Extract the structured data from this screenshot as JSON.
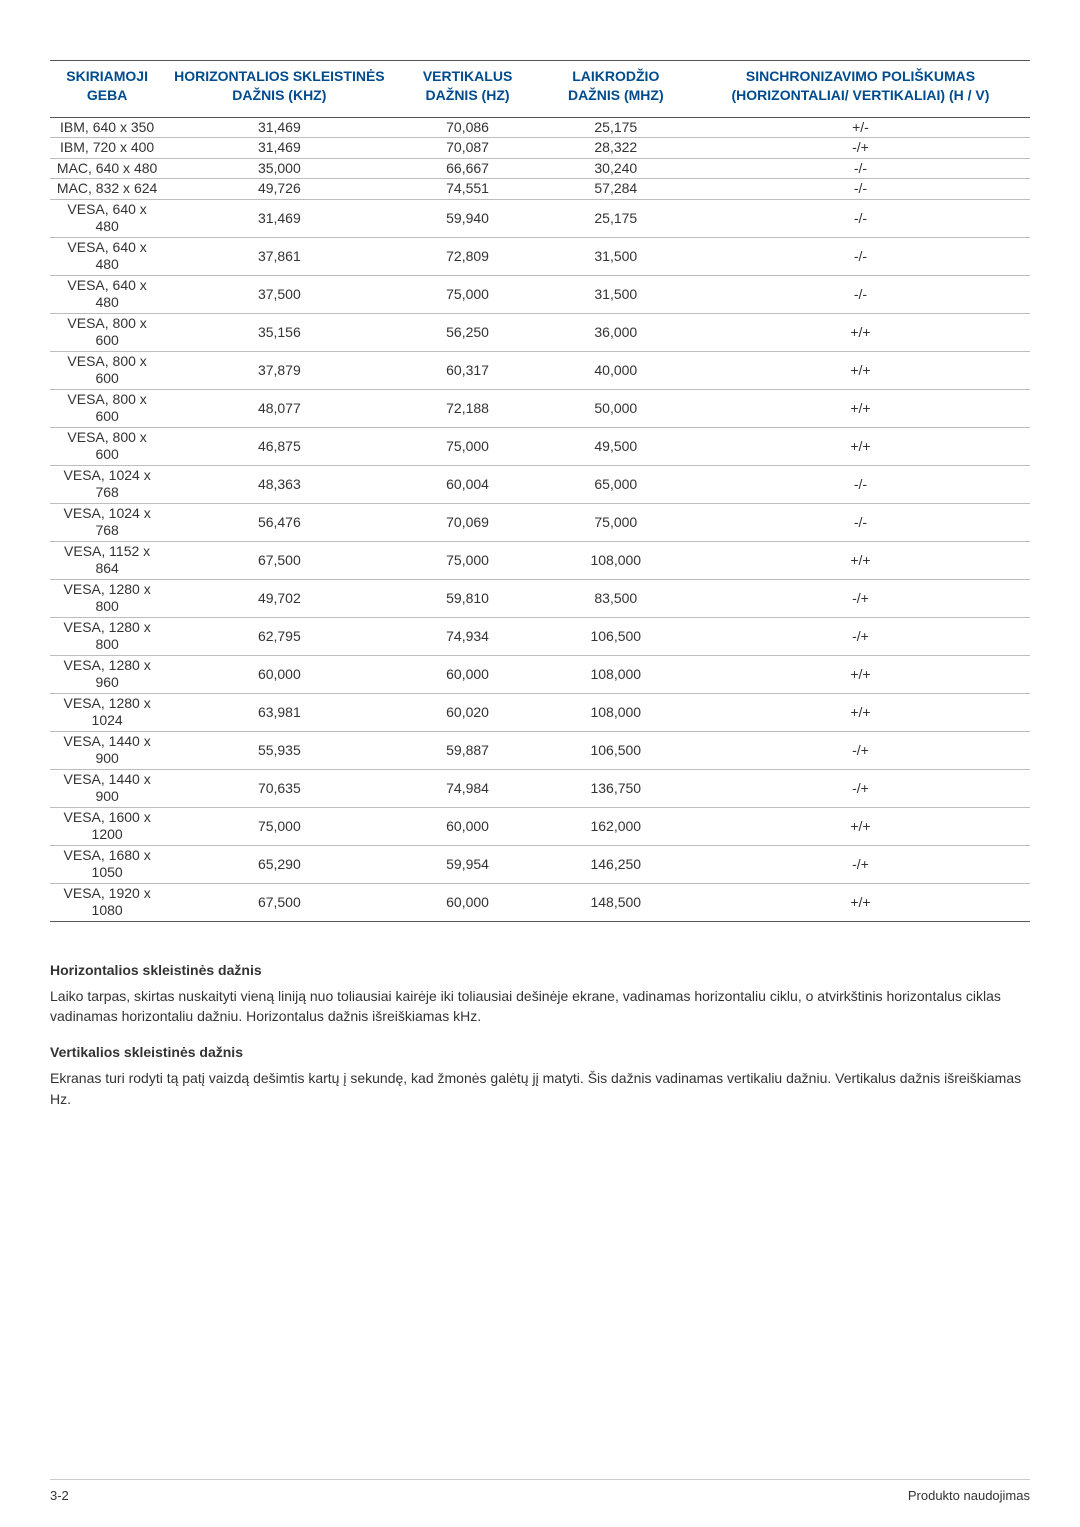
{
  "table": {
    "columns": [
      "SKIRIAMOJI GEBA",
      "HORIZONTALIOS SKLEISTINĖS DAŽNIS (KHZ)",
      "VERTIKALUS DAŽNIS (HZ)",
      "LAIKRODŽIO DAŽNIS (MHZ)",
      "SINCHRONIZAVIMO POLIŠKUMAS (HORIZONTALIAI/ VERTIKALIAI) (H / V)"
    ],
    "header_color": "#004b8d",
    "row_border_color": "#bdbdbd",
    "outer_border_color": "#555555",
    "font_size": 14,
    "col_align": [
      "center",
      "center",
      "center",
      "center",
      "center"
    ],
    "rows": [
      [
        "IBM, 640 x 350",
        "31,469",
        "70,086",
        "25,175",
        "+/-"
      ],
      [
        "IBM, 720 x 400",
        "31,469",
        "70,087",
        "28,322",
        "-/+"
      ],
      [
        "MAC, 640 x 480",
        "35,000",
        "66,667",
        "30,240",
        "-/-"
      ],
      [
        "MAC, 832 x 624",
        "49,726",
        "74,551",
        "57,284",
        "-/-"
      ],
      [
        "VESA, 640 x 480",
        "31,469",
        "59,940",
        "25,175",
        "-/-"
      ],
      [
        "VESA, 640 x 480",
        "37,861",
        "72,809",
        "31,500",
        "-/-"
      ],
      [
        "VESA, 640 x 480",
        "37,500",
        "75,000",
        "31,500",
        "-/-"
      ],
      [
        "VESA, 800 x 600",
        "35,156",
        "56,250",
        "36,000",
        "+/+"
      ],
      [
        "VESA, 800 x 600",
        "37,879",
        "60,317",
        "40,000",
        "+/+"
      ],
      [
        "VESA, 800 x 600",
        "48,077",
        "72,188",
        "50,000",
        "+/+"
      ],
      [
        "VESA, 800 x 600",
        "46,875",
        "75,000",
        "49,500",
        "+/+"
      ],
      [
        "VESA, 1024 x 768",
        "48,363",
        "60,004",
        "65,000",
        "-/-"
      ],
      [
        "VESA, 1024 x 768",
        "56,476",
        "70,069",
        "75,000",
        "-/-"
      ],
      [
        "VESA, 1152 x 864",
        "67,500",
        "75,000",
        "108,000",
        "+/+"
      ],
      [
        "VESA, 1280 x 800",
        "49,702",
        "59,810",
        "83,500",
        "-/+"
      ],
      [
        "VESA, 1280 x 800",
        "62,795",
        "74,934",
        "106,500",
        "-/+"
      ],
      [
        "VESA, 1280 x 960",
        "60,000",
        "60,000",
        "108,000",
        "+/+"
      ],
      [
        "VESA, 1280 x 1024",
        "63,981",
        "60,020",
        "108,000",
        "+/+"
      ],
      [
        "VESA, 1440 x 900",
        "55,935",
        "59,887",
        "106,500",
        "-/+"
      ],
      [
        "VESA, 1440 x 900",
        "70,635",
        "74,984",
        "136,750",
        "-/+"
      ],
      [
        "VESA, 1600 x 1200",
        "75,000",
        "60,000",
        "162,000",
        "+/+"
      ],
      [
        "VESA, 1680 x 1050",
        "65,290",
        "59,954",
        "146,250",
        "-/+"
      ],
      [
        "VESA, 1920 x 1080",
        "67,500",
        "60,000",
        "148,500",
        "+/+"
      ]
    ]
  },
  "sections": {
    "horizontal": {
      "title": "Horizontalios skleistinės dažnis",
      "body": "Laiko tarpas, skirtas nuskaityti vieną liniją nuo toliausiai kairėje iki toliausiai dešinėje ekrane, vadinamas horizontaliu ciklu, o atvirkštinis horizontalus ciklas vadinamas horizontaliu dažniu. Horizontalus dažnis išreiškiamas kHz."
    },
    "vertical": {
      "title": "Vertikalios skleistinės dažnis",
      "body": "Ekranas turi rodyti tą patį vaizdą dešimtis kartų į sekundę, kad žmonės galėtų jį matyti. Šis dažnis vadinamas vertikaliu dažniu. Vertikalus dažnis išreiškiamas Hz."
    }
  },
  "footer": {
    "left": "3-2",
    "right": "Produkto naudojimas"
  }
}
